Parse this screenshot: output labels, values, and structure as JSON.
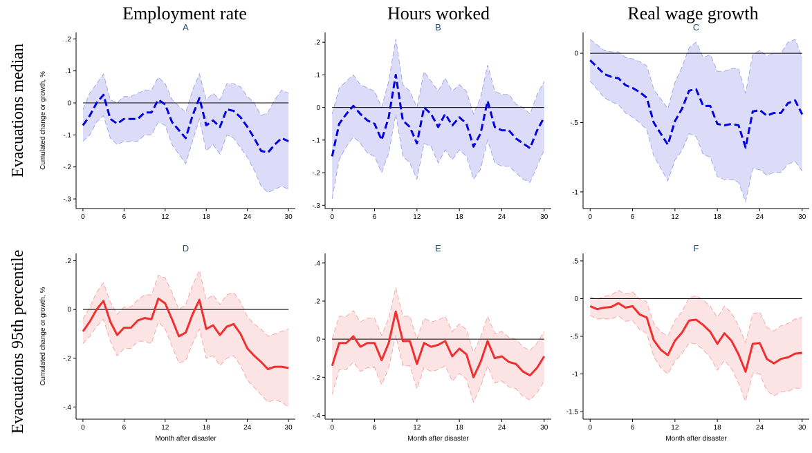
{
  "column_titles": [
    "Employment rate",
    "Hours worked",
    "Real wage growth"
  ],
  "row_titles": [
    "Evacuations median",
    "Evacuations 95th percentile"
  ],
  "ylabel": "Cumulated change or growth, %",
  "xlabel": "Month after disaster",
  "colors": {
    "median_line": "#0000e0",
    "median_band": "#dcdcf8",
    "median_ci": "#a8a8ea",
    "p95_line": "#f03030",
    "p95_band": "#fde4e4",
    "p95_ci": "#f6aaaa",
    "zero_line": "#000000",
    "panel_title": "#1f4e79"
  },
  "chart_data": [
    {
      "panel": "A",
      "type": "line",
      "line_style": "dashed",
      "color": "blue",
      "ylim": [
        -0.33,
        0.22
      ],
      "yticks": [
        0.2,
        0.1,
        0,
        -0.1,
        -0.2,
        -0.3
      ],
      "ytick_labels": [
        ".2",
        ".1",
        "0",
        "-.1",
        "-.2",
        "-.3"
      ],
      "xlim": [
        -1,
        31
      ],
      "xticks": [
        0,
        6,
        12,
        18,
        24,
        30
      ],
      "reference_line": 0,
      "x": [
        0,
        1,
        2,
        3,
        4,
        5,
        6,
        7,
        8,
        9,
        10,
        11,
        12,
        13,
        14,
        15,
        16,
        17,
        18,
        19,
        20,
        21,
        22,
        23,
        24,
        25,
        26,
        27,
        28,
        29,
        30
      ],
      "y": [
        -0.07,
        -0.04,
        0.0,
        0.025,
        -0.05,
        -0.065,
        -0.05,
        -0.05,
        -0.05,
        -0.03,
        -0.03,
        0.01,
        -0.005,
        -0.06,
        -0.085,
        -0.11,
        -0.04,
        0.015,
        -0.07,
        -0.055,
        -0.075,
        -0.02,
        -0.025,
        -0.045,
        -0.075,
        -0.11,
        -0.15,
        -0.155,
        -0.13,
        -0.11,
        -0.12
      ],
      "lower": [
        -0.12,
        -0.1,
        -0.06,
        -0.04,
        -0.11,
        -0.13,
        -0.12,
        -0.12,
        -0.12,
        -0.1,
        -0.1,
        -0.06,
        -0.07,
        -0.13,
        -0.16,
        -0.19,
        -0.12,
        -0.05,
        -0.15,
        -0.13,
        -0.16,
        -0.1,
        -0.11,
        -0.14,
        -0.17,
        -0.21,
        -0.26,
        -0.28,
        -0.27,
        -0.26,
        -0.27
      ],
      "upper": [
        -0.02,
        0.03,
        0.06,
        0.09,
        0.01,
        0.0,
        0.02,
        0.02,
        0.03,
        0.04,
        0.04,
        0.08,
        0.06,
        0.01,
        -0.01,
        -0.03,
        0.04,
        0.09,
        0.01,
        0.03,
        0.01,
        0.06,
        0.06,
        0.05,
        0.02,
        0.0,
        -0.04,
        -0.03,
        0.01,
        0.04,
        0.03
      ]
    },
    {
      "panel": "B",
      "type": "line",
      "line_style": "dashed",
      "color": "blue",
      "ylim": [
        -0.31,
        0.23
      ],
      "yticks": [
        0.2,
        0.1,
        0,
        -0.1,
        -0.2,
        -0.3
      ],
      "ytick_labels": [
        ".2",
        ".1",
        "0",
        "-.1",
        "-.2",
        "-.3"
      ],
      "xlim": [
        -1,
        31
      ],
      "xticks": [
        0,
        6,
        12,
        18,
        24,
        30
      ],
      "reference_line": 0,
      "x": [
        0,
        1,
        2,
        3,
        4,
        5,
        6,
        7,
        8,
        9,
        10,
        11,
        12,
        13,
        14,
        15,
        16,
        17,
        18,
        19,
        20,
        21,
        22,
        23,
        24,
        25,
        26,
        27,
        28,
        29,
        30
      ],
      "y": [
        -0.15,
        -0.05,
        -0.02,
        0.005,
        -0.02,
        -0.04,
        -0.05,
        -0.1,
        -0.03,
        0.1,
        -0.04,
        -0.06,
        -0.11,
        0.0,
        -0.02,
        -0.06,
        -0.02,
        -0.055,
        -0.03,
        -0.05,
        -0.12,
        -0.08,
        0.02,
        -0.06,
        -0.07,
        -0.07,
        -0.095,
        -0.11,
        -0.125,
        -0.07,
        -0.03
      ],
      "lower": [
        -0.28,
        -0.16,
        -0.12,
        -0.09,
        -0.11,
        -0.14,
        -0.15,
        -0.2,
        -0.14,
        -0.02,
        -0.15,
        -0.17,
        -0.22,
        -0.11,
        -0.12,
        -0.17,
        -0.13,
        -0.16,
        -0.13,
        -0.15,
        -0.22,
        -0.19,
        -0.1,
        -0.17,
        -0.18,
        -0.18,
        -0.2,
        -0.22,
        -0.23,
        -0.18,
        -0.13
      ],
      "upper": [
        -0.02,
        0.06,
        0.08,
        0.1,
        0.07,
        0.06,
        0.05,
        0.0,
        0.08,
        0.21,
        0.07,
        0.05,
        0.0,
        0.11,
        0.08,
        0.05,
        0.09,
        0.05,
        0.07,
        0.05,
        -0.02,
        0.03,
        0.13,
        0.05,
        0.04,
        0.04,
        0.01,
        0.0,
        -0.02,
        0.04,
        0.08
      ]
    },
    {
      "panel": "C",
      "type": "line",
      "line_style": "dashed",
      "color": "blue",
      "ylim": [
        -1.12,
        0.15
      ],
      "yticks": [
        0,
        -0.5,
        -1
      ],
      "ytick_labels": [
        "0",
        "-.5",
        "-1"
      ],
      "xlim": [
        -1,
        31
      ],
      "xticks": [
        0,
        6,
        12,
        18,
        24,
        30
      ],
      "reference_line": 0,
      "x": [
        0,
        1,
        2,
        3,
        4,
        5,
        6,
        7,
        8,
        9,
        10,
        11,
        12,
        13,
        14,
        15,
        16,
        17,
        18,
        19,
        20,
        21,
        22,
        23,
        24,
        25,
        26,
        27,
        28,
        29,
        30
      ],
      "y": [
        -0.05,
        -0.1,
        -0.15,
        -0.17,
        -0.18,
        -0.23,
        -0.25,
        -0.28,
        -0.32,
        -0.5,
        -0.58,
        -0.66,
        -0.49,
        -0.4,
        -0.27,
        -0.26,
        -0.38,
        -0.38,
        -0.51,
        -0.52,
        -0.51,
        -0.52,
        -0.68,
        -0.42,
        -0.41,
        -0.45,
        -0.43,
        -0.43,
        -0.36,
        -0.34,
        -0.44
      ],
      "lower": [
        -0.2,
        -0.26,
        -0.32,
        -0.35,
        -0.37,
        -0.43,
        -0.46,
        -0.5,
        -0.55,
        -0.74,
        -0.83,
        -0.92,
        -0.77,
        -0.7,
        -0.58,
        -0.6,
        -0.73,
        -0.75,
        -0.89,
        -0.91,
        -0.91,
        -0.93,
        -1.07,
        -0.83,
        -0.84,
        -0.88,
        -0.86,
        -0.86,
        -0.8,
        -0.78,
        -0.85
      ],
      "upper": [
        0.1,
        0.06,
        0.02,
        0.01,
        0.01,
        -0.03,
        -0.04,
        -0.06,
        -0.09,
        -0.26,
        -0.33,
        -0.4,
        -0.21,
        -0.1,
        0.04,
        0.08,
        -0.03,
        -0.01,
        -0.13,
        -0.13,
        -0.11,
        -0.11,
        -0.29,
        -0.01,
        0.02,
        -0.02,
        0.0,
        0.0,
        0.08,
        0.1,
        -0.03
      ]
    },
    {
      "panel": "D",
      "type": "line",
      "line_style": "solid",
      "color": "red",
      "ylim": [
        -0.45,
        0.23
      ],
      "yticks": [
        0.2,
        0,
        -0.2,
        -0.4
      ],
      "ytick_labels": [
        ".2",
        "0",
        "-.2",
        "-.4"
      ],
      "xlim": [
        -1,
        31
      ],
      "xticks": [
        0,
        6,
        12,
        18,
        24,
        30
      ],
      "reference_line": 0,
      "x": [
        0,
        1,
        2,
        3,
        4,
        5,
        6,
        7,
        8,
        9,
        10,
        11,
        12,
        13,
        14,
        15,
        16,
        17,
        18,
        19,
        20,
        21,
        22,
        23,
        24,
        25,
        26,
        27,
        28,
        29,
        30
      ],
      "y": [
        -0.09,
        -0.05,
        0.0,
        0.035,
        -0.05,
        -0.105,
        -0.075,
        -0.075,
        -0.045,
        -0.035,
        -0.04,
        0.045,
        0.025,
        -0.04,
        -0.11,
        -0.095,
        -0.02,
        0.04,
        -0.08,
        -0.065,
        -0.105,
        -0.07,
        -0.06,
        -0.1,
        -0.16,
        -0.19,
        -0.215,
        -0.245,
        -0.235,
        -0.235,
        -0.24
      ],
      "lower": [
        -0.14,
        -0.11,
        -0.07,
        -0.04,
        -0.13,
        -0.19,
        -0.16,
        -0.16,
        -0.13,
        -0.13,
        -0.14,
        -0.05,
        -0.08,
        -0.15,
        -0.22,
        -0.21,
        -0.14,
        -0.08,
        -0.2,
        -0.19,
        -0.23,
        -0.2,
        -0.19,
        -0.23,
        -0.29,
        -0.32,
        -0.35,
        -0.38,
        -0.37,
        -0.38,
        -0.4
      ],
      "upper": [
        -0.04,
        0.01,
        0.07,
        0.11,
        0.03,
        -0.02,
        0.01,
        0.01,
        0.04,
        0.06,
        0.06,
        0.14,
        0.13,
        0.07,
        0.0,
        0.02,
        0.1,
        0.16,
        0.04,
        0.06,
        0.02,
        0.06,
        0.07,
        0.03,
        -0.03,
        -0.06,
        -0.08,
        -0.11,
        -0.1,
        -0.09,
        -0.08
      ]
    },
    {
      "panel": "E",
      "type": "line",
      "line_style": "solid",
      "color": "red",
      "ylim": [
        -0.42,
        0.45
      ],
      "yticks": [
        0.4,
        0.2,
        0,
        -0.2,
        -0.4
      ],
      "ytick_labels": [
        ".4",
        ".2",
        "0",
        "-.2",
        "-.4"
      ],
      "xlim": [
        -1,
        31
      ],
      "xticks": [
        0,
        6,
        12,
        18,
        24,
        30
      ],
      "reference_line": 0,
      "x": [
        0,
        1,
        2,
        3,
        4,
        5,
        6,
        7,
        8,
        9,
        10,
        11,
        12,
        13,
        14,
        15,
        16,
        17,
        18,
        19,
        20,
        21,
        22,
        23,
        24,
        25,
        26,
        27,
        28,
        29,
        30
      ],
      "y": [
        -0.14,
        -0.02,
        -0.02,
        0.015,
        -0.04,
        -0.02,
        -0.02,
        -0.11,
        -0.02,
        0.145,
        -0.01,
        -0.01,
        -0.13,
        -0.02,
        -0.04,
        -0.03,
        -0.01,
        -0.09,
        -0.05,
        -0.08,
        -0.2,
        -0.12,
        -0.01,
        -0.1,
        -0.09,
        -0.12,
        -0.13,
        -0.17,
        -0.19,
        -0.15,
        -0.09
      ],
      "lower": [
        -0.29,
        -0.16,
        -0.16,
        -0.12,
        -0.17,
        -0.15,
        -0.15,
        -0.24,
        -0.15,
        0.02,
        -0.14,
        -0.14,
        -0.26,
        -0.15,
        -0.17,
        -0.16,
        -0.14,
        -0.22,
        -0.18,
        -0.21,
        -0.33,
        -0.25,
        -0.14,
        -0.23,
        -0.22,
        -0.25,
        -0.26,
        -0.3,
        -0.32,
        -0.28,
        -0.22
      ],
      "upper": [
        0.0,
        0.12,
        0.12,
        0.15,
        0.09,
        0.11,
        0.11,
        0.02,
        0.11,
        0.27,
        0.12,
        0.12,
        0.0,
        0.11,
        0.09,
        0.1,
        0.12,
        0.04,
        0.08,
        0.05,
        -0.07,
        0.01,
        0.12,
        0.03,
        0.04,
        0.01,
        0.0,
        -0.04,
        -0.06,
        -0.02,
        0.04
      ]
    },
    {
      "panel": "F",
      "type": "line",
      "line_style": "solid",
      "color": "red",
      "ylim": [
        -1.6,
        0.6
      ],
      "yticks": [
        0.5,
        0,
        -0.5,
        -1,
        -1.5
      ],
      "ytick_labels": [
        ".5",
        "0",
        "-.5",
        "-1",
        "-1.5"
      ],
      "xlim": [
        -1,
        31
      ],
      "xticks": [
        0,
        6,
        12,
        18,
        24,
        30
      ],
      "reference_line": 0,
      "x": [
        0,
        1,
        2,
        3,
        4,
        5,
        6,
        7,
        8,
        9,
        10,
        11,
        12,
        13,
        14,
        15,
        16,
        17,
        18,
        19,
        20,
        21,
        22,
        23,
        24,
        25,
        26,
        27,
        28,
        29,
        30
      ],
      "y": [
        -0.1,
        -0.14,
        -0.12,
        -0.11,
        -0.06,
        -0.12,
        -0.1,
        -0.21,
        -0.25,
        -0.55,
        -0.68,
        -0.75,
        -0.56,
        -0.45,
        -0.29,
        -0.28,
        -0.35,
        -0.44,
        -0.6,
        -0.46,
        -0.56,
        -0.74,
        -0.97,
        -0.6,
        -0.59,
        -0.8,
        -0.86,
        -0.8,
        -0.78,
        -0.73,
        -0.72
      ],
      "lower": [
        -0.22,
        -0.27,
        -0.27,
        -0.27,
        -0.23,
        -0.3,
        -0.29,
        -0.41,
        -0.46,
        -0.77,
        -0.92,
        -1.0,
        -0.83,
        -0.73,
        -0.59,
        -0.6,
        -0.68,
        -0.78,
        -0.95,
        -0.82,
        -0.93,
        -1.12,
        -1.36,
        -1.0,
        -1.0,
        -1.22,
        -1.29,
        -1.24,
        -1.23,
        -1.19,
        -1.19
      ],
      "upper": [
        0.02,
        -0.01,
        0.03,
        0.05,
        0.11,
        0.06,
        0.09,
        -0.01,
        -0.04,
        -0.33,
        -0.44,
        -0.5,
        -0.29,
        -0.17,
        0.01,
        0.04,
        -0.02,
        -0.1,
        -0.25,
        -0.1,
        -0.19,
        -0.36,
        -0.58,
        -0.2,
        -0.18,
        -0.38,
        -0.43,
        -0.36,
        -0.33,
        -0.27,
        -0.25
      ]
    }
  ]
}
